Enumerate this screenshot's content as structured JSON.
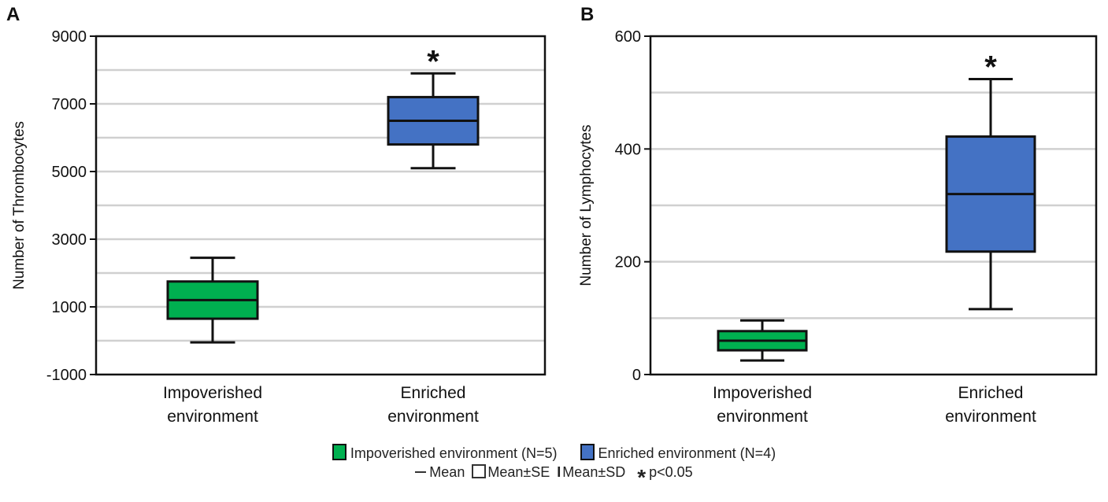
{
  "chart_data": [
    {
      "type": "box",
      "panel_label": "A",
      "ylabel": "Number of Thrombocytes",
      "ylim": [
        -1000,
        9000
      ],
      "yticks": [
        -1000,
        1000,
        3000,
        5000,
        7000,
        9000
      ],
      "ytick_labels": [
        "-1000",
        "1000",
        "3000",
        "5000",
        "7000",
        "9000"
      ],
      "grid_y": [
        0,
        1000,
        2000,
        3000,
        4000,
        5000,
        6000,
        7000,
        8000
      ],
      "categories": [
        [
          "Impoverished",
          "environment"
        ],
        [
          "Enriched",
          "environment"
        ]
      ],
      "boxes": [
        {
          "mean": 1200,
          "se_low": 650,
          "se_high": 1750,
          "sd_low": -50,
          "sd_high": 2450,
          "color": "#00b050"
        },
        {
          "mean": 6500,
          "se_low": 5800,
          "se_high": 7200,
          "sd_low": 5100,
          "sd_high": 7900,
          "color": "#4472c4",
          "annotation": "*"
        }
      ]
    },
    {
      "type": "box",
      "panel_label": "B",
      "ylabel": "Number of Lymphocytes",
      "ylim": [
        0,
        600
      ],
      "yticks": [
        0,
        200,
        400,
        600
      ],
      "ytick_labels": [
        "0",
        "200",
        "400",
        "600"
      ],
      "grid_y": [
        100,
        200,
        300,
        400,
        500
      ],
      "categories": [
        [
          "Impoverished",
          "environment"
        ],
        [
          "Enriched",
          "environment"
        ]
      ],
      "boxes": [
        {
          "mean": 60,
          "se_low": 43,
          "se_high": 77,
          "sd_low": 25,
          "sd_high": 96,
          "color": "#00b050"
        },
        {
          "mean": 320,
          "se_low": 218,
          "se_high": 422,
          "sd_low": 116,
          "sd_high": 524,
          "color": "#4472c4",
          "annotation": "*"
        }
      ]
    }
  ],
  "legend": {
    "series": [
      {
        "label": "Impoverished environment (N=5)",
        "color": "#00b050"
      },
      {
        "label": "Enriched environment (N=4)",
        "color": "#4472c4"
      }
    ],
    "mean_label": "Mean",
    "se_label": "Mean±SE",
    "sd_label": "Mean±SD",
    "sig_symbol": "*",
    "sig_label": "p<0.05"
  }
}
